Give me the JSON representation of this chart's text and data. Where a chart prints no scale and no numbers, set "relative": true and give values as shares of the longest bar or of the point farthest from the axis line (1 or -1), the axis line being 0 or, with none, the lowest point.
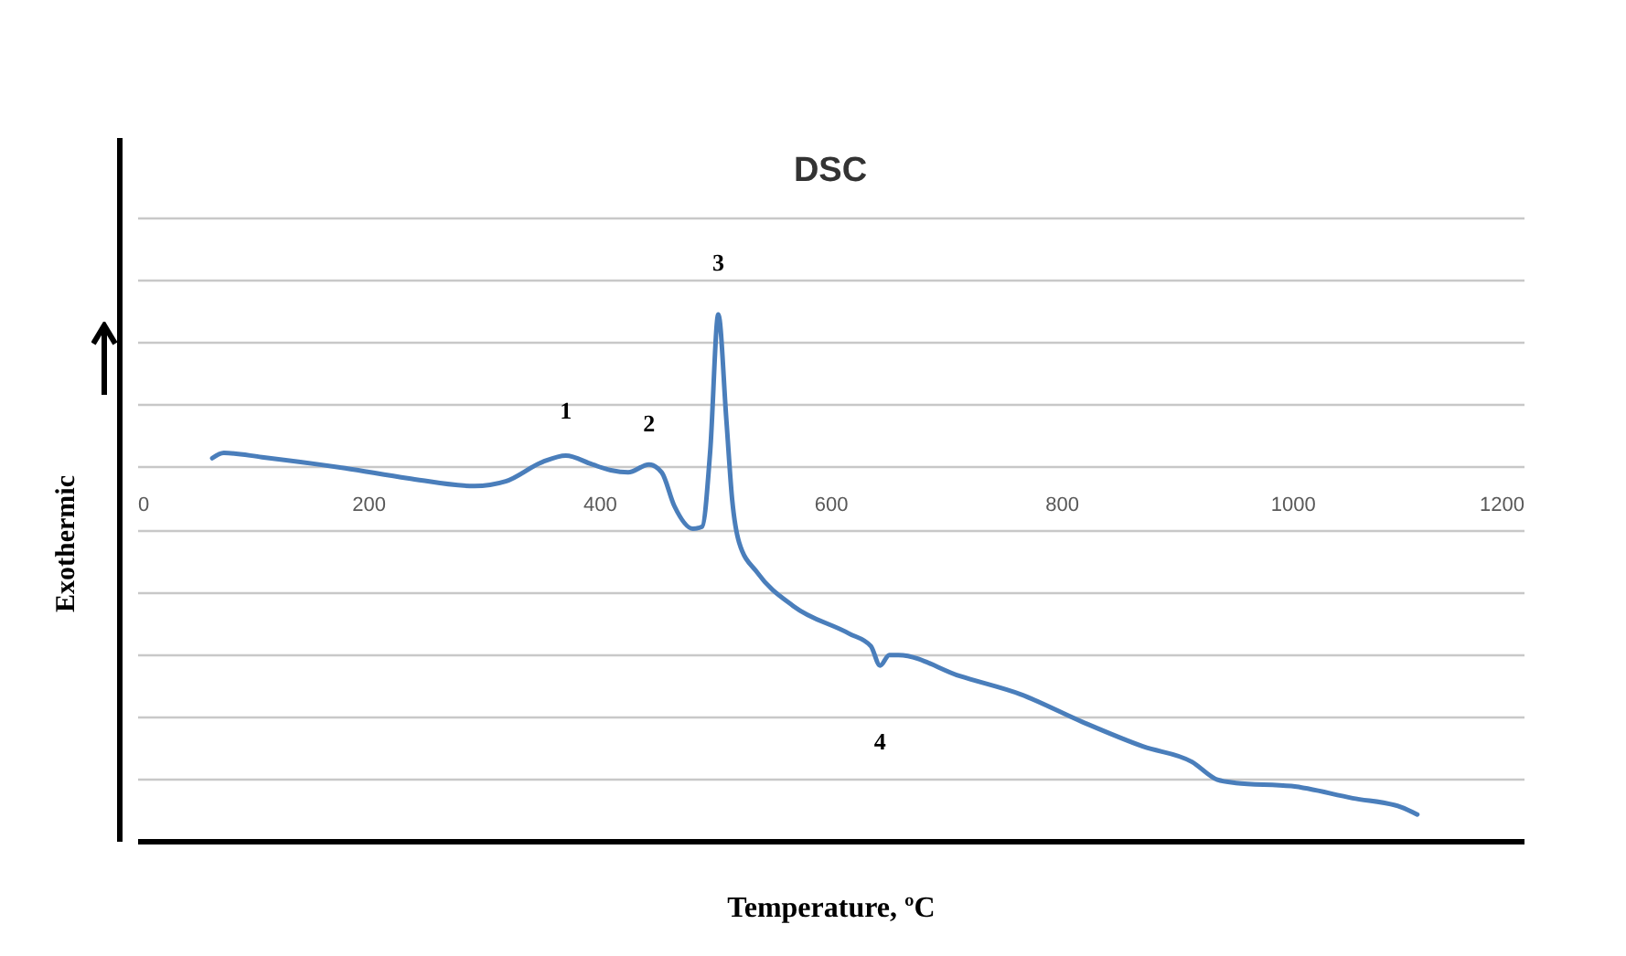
{
  "chart_data": {
    "type": "line",
    "title": "DSC",
    "xlabel": "Temperature, ºC",
    "ylabel": "Exothermic",
    "relative": true,
    "grid": "y",
    "color": "#4a7ebb",
    "xlim": [
      0,
      1200
    ],
    "xticks": [
      0,
      200,
      400,
      600,
      800,
      1000,
      1200
    ],
    "x": [
      65,
      75,
      108,
      180,
      234,
      292,
      319,
      351,
      371,
      394,
      410,
      425,
      443,
      454,
      465,
      481,
      489,
      496,
      503,
      510,
      515,
      521,
      537,
      568,
      616,
      635,
      643,
      651,
      659,
      712,
      765,
      818,
      871,
      913,
      935,
      951,
      999,
      1052,
      1094,
      1108
    ],
    "values": [
      0.727,
      0.737,
      0.729,
      0.708,
      0.689,
      0.674,
      0.683,
      0.72,
      0.732,
      0.715,
      0.704,
      0.7,
      0.715,
      0.7,
      0.636,
      0.593,
      0.597,
      0.741,
      1,
      0.799,
      0.648,
      0.567,
      0.509,
      0.446,
      0.394,
      0.37,
      0.333,
      0.353,
      0.353,
      0.313,
      0.278,
      0.226,
      0.179,
      0.15,
      0.116,
      0.11,
      0.104,
      0.081,
      0.064,
      0.05
    ],
    "annotations": [
      {
        "text": "1",
        "x": 371,
        "y": 0.732
      },
      {
        "text": "2",
        "x": 443,
        "y": 0.715
      },
      {
        "text": "3",
        "x": 503,
        "y": 1
      },
      {
        "text": "4",
        "x": 643,
        "y": 0.333
      }
    ]
  }
}
